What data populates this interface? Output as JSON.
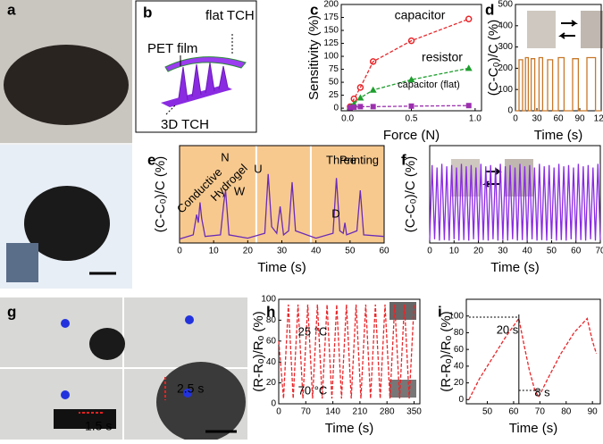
{
  "figures": [
    {
      "panel": "a"
    },
    {
      "panel": "b",
      "annotations": [
        "flat TCH",
        "PET film",
        "3D TCH"
      ]
    },
    {
      "panel": "g",
      "annotations": [
        "2.5 s",
        "1.5 s"
      ]
    }
  ],
  "chart_data": [
    {
      "type": "scatter",
      "panel": "c",
      "x_label": "Force (N)",
      "y_label": "Sensitivity (%)",
      "xlim": [
        -0.05,
        1.05
      ],
      "ylim": [
        -5,
        200
      ],
      "xticks": [
        {
          "value": 0,
          "label": "0.0"
        },
        {
          "value": 0.5,
          "label": "0.5"
        },
        {
          "value": 1,
          "label": "1.0"
        }
      ],
      "yticks": [
        0,
        25,
        50,
        75,
        100,
        125,
        150,
        175,
        200
      ],
      "series": [
        {
          "name": "capacitor",
          "color": "#e8262a",
          "x": [
            0.02,
            0.05,
            0.1,
            0.2,
            0.5,
            0.95
          ],
          "values": [
            3,
            18,
            40,
            90,
            130,
            172
          ]
        },
        {
          "name": "resistor",
          "color": "#1e9e2e",
          "x": [
            0.02,
            0.05,
            0.1,
            0.2,
            0.5,
            0.95
          ],
          "values": [
            2,
            8,
            20,
            35,
            55,
            77
          ]
        },
        {
          "name": "capacitor (flat)",
          "color": "#9b2fae",
          "x": [
            0.02,
            0.05,
            0.1,
            0.2,
            0.5,
            0.95
          ],
          "values": [
            1,
            2,
            3,
            3,
            4,
            5
          ]
        }
      ]
    },
    {
      "type": "line",
      "panel": "d",
      "x_label": "Time (s)",
      "y_label": "(C-C₀)/C (%)",
      "xlim": [
        0,
        120
      ],
      "ylim": [
        0,
        500
      ],
      "xticks": [
        0,
        30,
        60,
        90,
        120
      ],
      "yticks": [
        0,
        100,
        200,
        300,
        400,
        500
      ],
      "series": [
        {
          "color": "#c8782a",
          "x": [
            0,
            5,
            5,
            10,
            10,
            14,
            14,
            18,
            18,
            22,
            22,
            27,
            27,
            33,
            33,
            38,
            38,
            45,
            45,
            52,
            52,
            60,
            60,
            68,
            68,
            80,
            80,
            88,
            88,
            100,
            100,
            112,
            112,
            120
          ],
          "values": [
            0,
            0,
            240,
            240,
            0,
            0,
            250,
            250,
            0,
            0,
            245,
            245,
            0,
            0,
            250,
            250,
            0,
            0,
            240,
            240,
            0,
            0,
            250,
            250,
            0,
            0,
            245,
            245,
            0,
            0,
            250,
            250,
            0,
            0
          ]
        }
      ]
    },
    {
      "type": "line",
      "panel": "e",
      "x_label": "Time (s)",
      "y_label": "(C-C₀)/C (%)",
      "xlim": [
        0,
        60
      ],
      "ylim": [
        0,
        12
      ],
      "xticks": [
        0,
        10,
        20,
        30,
        40,
        50,
        60
      ],
      "annotations": [
        "Conductive",
        "Hydrogel",
        "N",
        "W",
        "U",
        "Three",
        "D",
        "Printing"
      ],
      "series": [
        {
          "color": "#6a2bb8",
          "x": [
            0,
            4,
            5,
            5.5,
            6,
            6.5,
            7.5,
            12,
            13,
            13.5,
            14.5,
            20,
            25,
            26,
            27,
            28.5,
            29.5,
            30.5,
            32,
            33,
            34,
            40,
            45,
            46,
            47,
            48,
            48.5,
            49,
            52,
            53,
            54,
            60
          ],
          "values": [
            0.5,
            1,
            3.5,
            2.5,
            5,
            3,
            0.8,
            1,
            5,
            6.5,
            1,
            0.6,
            1.2,
            8.5,
            2,
            1.2,
            4.5,
            1,
            1.5,
            7.5,
            1.5,
            0.6,
            1.2,
            8,
            1.5,
            1.2,
            2.5,
            1,
            1.5,
            6.5,
            1,
            0.8
          ]
        }
      ]
    },
    {
      "type": "line",
      "panel": "f",
      "x_label": "Time (s)",
      "y_label": "(C-C₀)/C (%)",
      "xlim": [
        0,
        70
      ],
      "ylim": [
        0,
        400
      ],
      "xticks": [
        0,
        10,
        20,
        30,
        40,
        50,
        60,
        70
      ],
      "series": [
        {
          "color": "#8a2be2",
          "x": [
            0,
            1,
            2,
            3,
            4,
            5,
            6,
            7,
            8,
            9,
            10,
            11,
            12,
            13,
            14,
            15,
            16,
            17,
            18,
            19,
            20,
            21,
            22,
            23,
            24,
            25,
            26,
            27,
            28,
            29,
            30,
            31,
            32,
            33,
            34,
            35,
            36,
            37,
            38,
            39,
            40,
            41,
            42,
            43,
            44,
            45,
            46,
            47,
            48,
            49,
            50,
            51,
            52,
            53,
            54,
            55,
            56,
            57,
            58,
            59,
            60,
            61,
            62,
            63,
            64,
            65,
            66,
            67,
            68,
            69,
            70
          ],
          "values": [
            10,
            320,
            15,
            310,
            10,
            325,
            12,
            315,
            10,
            320,
            15,
            310,
            10,
            325,
            12,
            315,
            10,
            320,
            15,
            310,
            10,
            325,
            12,
            315,
            10,
            320,
            15,
            310,
            10,
            325,
            12,
            315,
            10,
            320,
            15,
            310,
            10,
            325,
            12,
            315,
            10,
            320,
            15,
            310,
            10,
            325,
            12,
            315,
            10,
            320,
            15,
            310,
            10,
            325,
            12,
            315,
            10,
            320,
            15,
            310,
            10,
            325,
            12,
            315,
            10,
            320,
            15,
            310,
            10,
            325,
            12
          ]
        }
      ]
    },
    {
      "type": "line",
      "panel": "h",
      "x_label": "Time (s)",
      "y_label": "(R-Rₒ)/Rₒ (%)",
      "xlim": [
        0,
        365
      ],
      "ylim": [
        0,
        100
      ],
      "xticks": [
        0,
        70,
        140,
        210,
        280,
        350
      ],
      "yticks": [
        0,
        20,
        40,
        60,
        80,
        100
      ],
      "annotations": [
        "25 °C",
        "70 °C"
      ],
      "series": [
        {
          "color": "#e8262a",
          "x": [
            0,
            12.5,
            25,
            37.5,
            50,
            62.5,
            75,
            87.5,
            100,
            112.5,
            125,
            137.5,
            150,
            162.5,
            175,
            187.5,
            200,
            212.5,
            225,
            237.5,
            250,
            262.5,
            275,
            287.5,
            300,
            312.5,
            325,
            337.5,
            350
          ],
          "values": [
            60,
            5,
            95,
            5,
            95,
            5,
            95,
            5,
            95,
            5,
            95,
            5,
            95,
            5,
            95,
            5,
            95,
            5,
            95,
            5,
            95,
            5,
            95,
            5,
            95,
            5,
            95,
            5,
            95
          ]
        }
      ]
    },
    {
      "type": "line",
      "panel": "i",
      "x_label": "Time (s)",
      "y_label": "(R-Rₒ)/Rₒ (%)",
      "xlim": [
        42,
        93
      ],
      "ylim": [
        -5,
        120
      ],
      "xticks": [
        50,
        60,
        70,
        80,
        90
      ],
      "yticks": [
        0,
        20,
        40,
        60,
        80,
        100
      ],
      "annotations": [
        "20 s",
        "8 s"
      ],
      "series": [
        {
          "color": "#e8262a",
          "x": [
            43,
            47,
            52,
            57,
            62,
            64,
            66,
            68,
            69.5,
            73,
            78,
            83,
            88,
            90,
            91.5
          ],
          "values": [
            0,
            25,
            50,
            75,
            97,
            65,
            35,
            12,
            3,
            25,
            55,
            80,
            97,
            70,
            55
          ]
        }
      ]
    }
  ]
}
